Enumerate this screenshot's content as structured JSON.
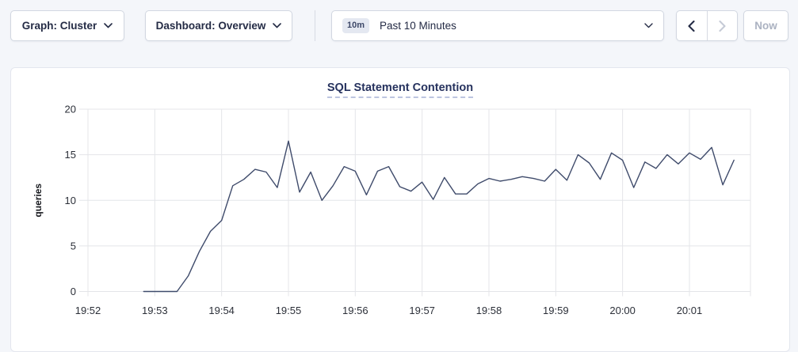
{
  "toolbar": {
    "graph_dropdown_label": "Graph: Cluster",
    "dashboard_dropdown_label": "Dashboard: Overview",
    "time_picker": {
      "badge": "10m",
      "label": "Past 10 Minutes"
    },
    "now_button_label": "Now"
  },
  "chart": {
    "title": "SQL Statement Contention",
    "ylabel": "queries"
  },
  "chart_data": {
    "type": "line",
    "title": "SQL Statement Contention",
    "xlabel": "",
    "ylabel": "queries",
    "ylim": [
      0,
      20
    ],
    "y_ticks": [
      0,
      5,
      10,
      15,
      20
    ],
    "x_ticks": [
      "19:52",
      "19:53",
      "19:54",
      "19:55",
      "19:56",
      "19:57",
      "19:58",
      "19:59",
      "20:00",
      "20:01"
    ],
    "grid": true,
    "legend": "none",
    "series": [
      {
        "name": "queries",
        "color": "#3f4b6b",
        "points": [
          [
            "19:52:50",
            0
          ],
          [
            "19:53:00",
            0
          ],
          [
            "19:53:10",
            0
          ],
          [
            "19:53:20",
            0
          ],
          [
            "19:53:30",
            1.7
          ],
          [
            "19:53:40",
            4.4
          ],
          [
            "19:53:50",
            6.6
          ],
          [
            "19:54:00",
            7.8
          ],
          [
            "19:54:10",
            11.6
          ],
          [
            "19:54:20",
            12.3
          ],
          [
            "19:54:30",
            13.4
          ],
          [
            "19:54:40",
            13.1
          ],
          [
            "19:54:50",
            11.4
          ],
          [
            "19:55:00",
            16.5
          ],
          [
            "19:55:10",
            10.9
          ],
          [
            "19:55:20",
            13.1
          ],
          [
            "19:55:30",
            10.0
          ],
          [
            "19:55:40",
            11.6
          ],
          [
            "19:55:50",
            13.7
          ],
          [
            "19:56:00",
            13.2
          ],
          [
            "19:56:10",
            10.6
          ],
          [
            "19:56:20",
            13.2
          ],
          [
            "19:56:30",
            13.7
          ],
          [
            "19:56:40",
            11.5
          ],
          [
            "19:56:50",
            11.0
          ],
          [
            "19:57:00",
            12.0
          ],
          [
            "19:57:10",
            10.1
          ],
          [
            "19:57:20",
            12.5
          ],
          [
            "19:57:30",
            10.7
          ],
          [
            "19:57:40",
            10.7
          ],
          [
            "19:57:50",
            11.8
          ],
          [
            "19:58:00",
            12.4
          ],
          [
            "19:58:10",
            12.1
          ],
          [
            "19:58:20",
            12.3
          ],
          [
            "19:58:30",
            12.6
          ],
          [
            "19:58:40",
            12.4
          ],
          [
            "19:58:50",
            12.1
          ],
          [
            "19:59:00",
            13.4
          ],
          [
            "19:59:10",
            12.2
          ],
          [
            "19:59:20",
            15.0
          ],
          [
            "19:59:30",
            14.1
          ],
          [
            "19:59:40",
            12.3
          ],
          [
            "19:59:50",
            15.2
          ],
          [
            "20:00:00",
            14.4
          ],
          [
            "20:00:10",
            11.4
          ],
          [
            "20:00:20",
            14.2
          ],
          [
            "20:00:30",
            13.5
          ],
          [
            "20:00:40",
            15.0
          ],
          [
            "20:00:50",
            14.0
          ],
          [
            "20:01:00",
            15.2
          ],
          [
            "20:01:10",
            14.5
          ],
          [
            "20:01:20",
            15.8
          ],
          [
            "20:01:30",
            11.7
          ],
          [
            "20:01:40",
            14.4
          ]
        ]
      }
    ],
    "colors": {
      "line": "#3f4b6b",
      "gridline": "#e4e5e9",
      "axis_text": "#2b2f38",
      "title_text": "#26325e"
    }
  }
}
